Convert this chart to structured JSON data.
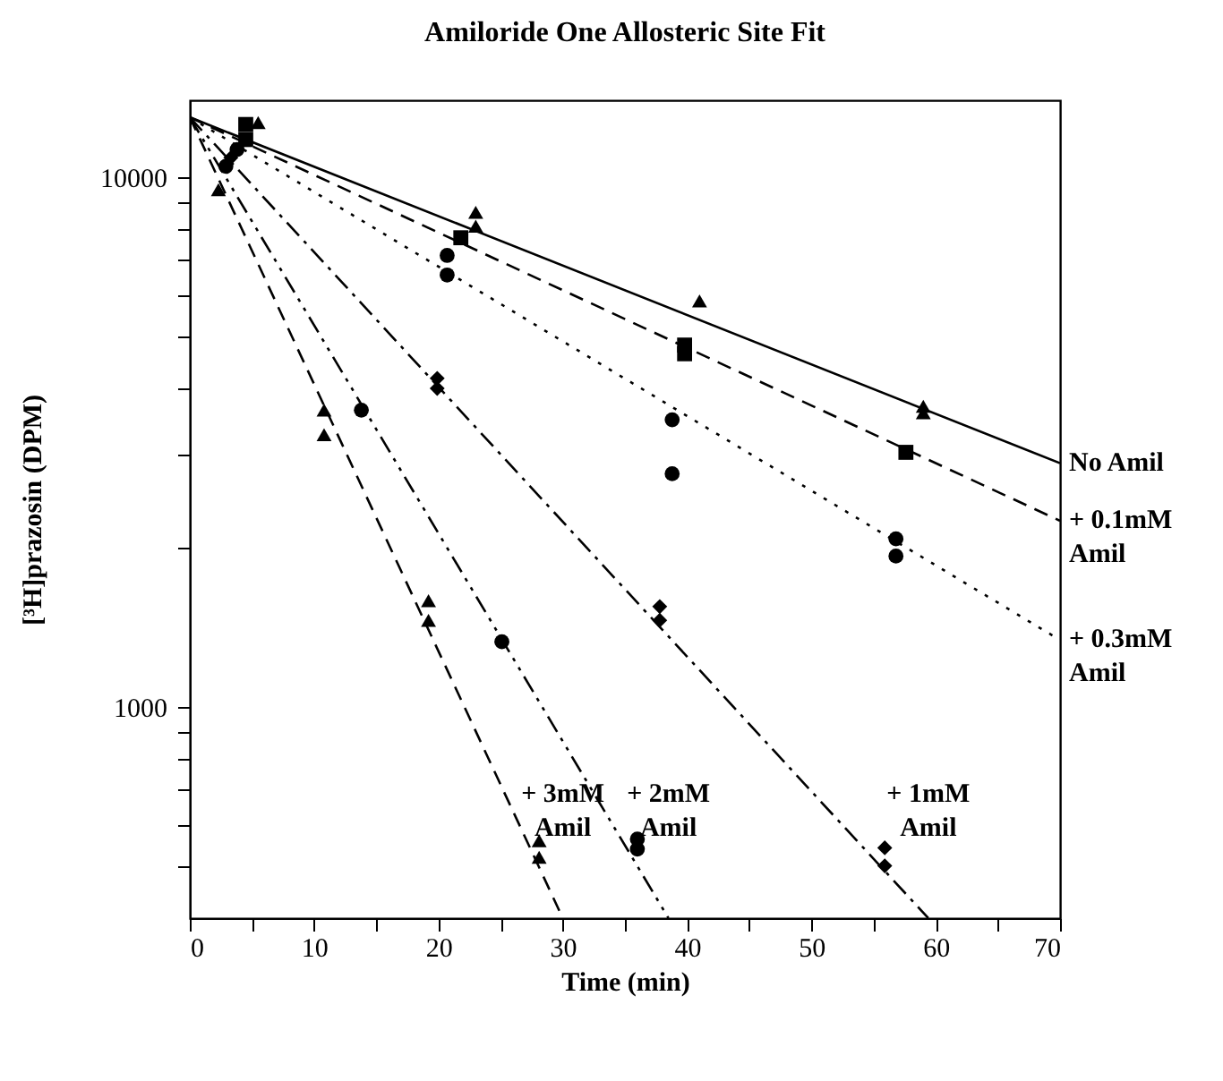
{
  "chart_data": {
    "type": "scatter",
    "title": "Amiloride   One Allosteric Site Fit",
    "xlabel": "Time (min)",
    "ylabel": "[³H]prazosin  (DPM)",
    "log": "y",
    "xlim": [
      0,
      70
    ],
    "xticks": [
      0,
      {
        "value": 5,
        "label": null
      },
      10,
      {
        "value": 15,
        "label": null
      },
      20,
      {
        "value": 25,
        "label": null
      },
      30,
      {
        "value": 35,
        "label": null
      },
      40,
      {
        "value": 45,
        "label": null
      },
      50,
      {
        "value": 55,
        "label": null
      },
      60,
      {
        "value": 65,
        "label": null
      },
      70
    ],
    "ylim": [
      400,
      14000
    ],
    "yticks": [
      {
        "value": 500,
        "label": null
      },
      {
        "value": 600,
        "label": null
      },
      {
        "value": 700,
        "label": null
      },
      {
        "value": 800,
        "label": null
      },
      {
        "value": 900,
        "label": null
      },
      1000,
      {
        "value": 2000,
        "label": null
      },
      {
        "value": 3000,
        "label": null
      },
      {
        "value": 4000,
        "label": null
      },
      {
        "value": 5000,
        "label": null
      },
      {
        "value": 6000,
        "label": null
      },
      {
        "value": 7000,
        "label": null
      },
      {
        "value": 8000,
        "label": null
      },
      {
        "value": 9000,
        "label": null
      },
      10000
    ],
    "grid": false,
    "series": [
      {
        "marker": "triangle",
        "color": "#000000",
        "x": [
          5.5,
          23,
          23,
          41,
          59,
          59
        ],
        "values": [
          12700,
          8600,
          8100,
          5850,
          3700,
          3600
        ]
      },
      {
        "type": "line",
        "name": "No Amil",
        "line_style": "solid",
        "color": "#000000",
        "x": [
          0,
          70
        ],
        "values": [
          13000,
          2890
        ]
      },
      {
        "marker": "square",
        "color": "#000000",
        "x": [
          4.5,
          4.5,
          21.8,
          39.8,
          39.8,
          57.6
        ],
        "values": [
          12600,
          11800,
          7700,
          4830,
          4650,
          3030
        ]
      },
      {
        "type": "line",
        "name": "+ 0.1mM\nAmil",
        "line_style": "dashed",
        "color": "#000000",
        "x": [
          0,
          70
        ],
        "values": [
          13000,
          2250
        ]
      },
      {
        "marker": "circle",
        "color": "#000000",
        "x": [
          3.8,
          2.9,
          20.7,
          20.7,
          38.8,
          38.8,
          56.8,
          56.8
        ],
        "values": [
          11300,
          10500,
          7130,
          6550,
          3490,
          2760,
          2080,
          1930
        ]
      },
      {
        "type": "line",
        "name": "+ 0.3mM\nAmil",
        "line_style": "dotted",
        "color": "#000000",
        "x": [
          0,
          70
        ],
        "values": [
          13000,
          1340
        ]
      },
      {
        "marker": "diamond",
        "color": "#000000",
        "x": [
          3.3,
          19.9,
          19.9,
          37.8,
          37.8,
          55.9,
          55.9
        ],
        "values": [
          10900,
          4180,
          4000,
          1550,
          1460,
          543,
          502
        ]
      },
      {
        "type": "line",
        "name": "+ 1mM\nAmil",
        "line_style": "dashdot",
        "color": "#000000",
        "x": [
          0,
          59.4
        ],
        "values": [
          13000,
          400
        ]
      },
      {
        "marker": "circle",
        "color": "#000000",
        "x": [
          13.8,
          25.1,
          36,
          36
        ],
        "values": [
          3640,
          1330,
          564,
          540
        ]
      },
      {
        "type": "line",
        "name": "+ 2mM\nAmil",
        "line_style": "dashdotdot",
        "color": "#000000",
        "x": [
          0,
          38.5
        ],
        "values": [
          13000,
          400
        ]
      },
      {
        "marker": "triangle",
        "color": "#000000",
        "x": [
          2.3,
          10.8,
          10.8,
          19.2,
          19.2,
          28.1,
          28.1
        ],
        "values": [
          9490,
          3640,
          3270,
          1590,
          1460,
          560,
          521
        ]
      },
      {
        "type": "line",
        "name": "+ 3mM\nAmil",
        "line_style": "dashed",
        "color": "#000000",
        "x": [
          0,
          30
        ],
        "values": [
          13000,
          400
        ]
      }
    ]
  }
}
